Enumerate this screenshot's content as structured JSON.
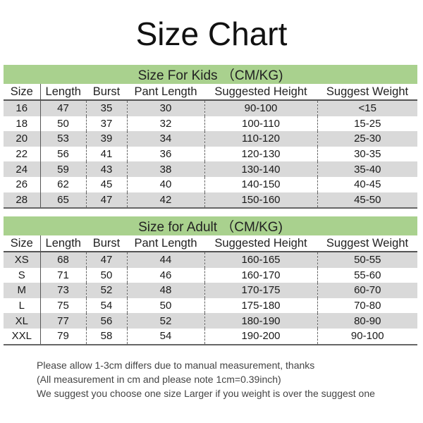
{
  "title": "Size Chart",
  "kids": {
    "heading": "Size For Kids （CM/KG)",
    "columns": [
      "Size",
      "Length",
      "Burst",
      "Pant Length",
      "Suggested Height",
      "Suggest Weight"
    ],
    "rows": [
      [
        "16",
        "47",
        "35",
        "30",
        "90-100",
        "<15"
      ],
      [
        "18",
        "50",
        "37",
        "32",
        "100-110",
        "15-25"
      ],
      [
        "20",
        "53",
        "39",
        "34",
        "110-120",
        "25-30"
      ],
      [
        "22",
        "56",
        "41",
        "36",
        "120-130",
        "30-35"
      ],
      [
        "24",
        "59",
        "43",
        "38",
        "130-140",
        "35-40"
      ],
      [
        "26",
        "62",
        "45",
        "40",
        "140-150",
        "40-45"
      ],
      [
        "28",
        "65",
        "47",
        "42",
        "150-160",
        "45-50"
      ]
    ]
  },
  "adult": {
    "heading": "Size for Adult （CM/KG)",
    "columns": [
      "Size",
      "Length",
      "Burst",
      "Pant Length",
      "Suggested Height",
      "Suggest Weight"
    ],
    "rows": [
      [
        "XS",
        "68",
        "47",
        "44",
        "160-165",
        "50-55"
      ],
      [
        "S",
        "71",
        "50",
        "46",
        "160-170",
        "55-60"
      ],
      [
        "M",
        "73",
        "52",
        "48",
        "170-175",
        "60-70"
      ],
      [
        "L",
        "75",
        "54",
        "50",
        "175-180",
        "70-80"
      ],
      [
        "XL",
        "77",
        "56",
        "52",
        "180-190",
        "80-90"
      ],
      [
        "XXL",
        "79",
        "58",
        "54",
        "190-200",
        "90-100"
      ]
    ]
  },
  "notes": [
    "Please allow 1-3cm differs due to manual measurement, thanks",
    "(All measurement in cm and please note 1cm=0.39inch)",
    "We suggest you choose one size Larger if you weight is over the suggest one"
  ],
  "colors": {
    "band": "#a9d18e",
    "stripe": "#d9d9d9"
  }
}
